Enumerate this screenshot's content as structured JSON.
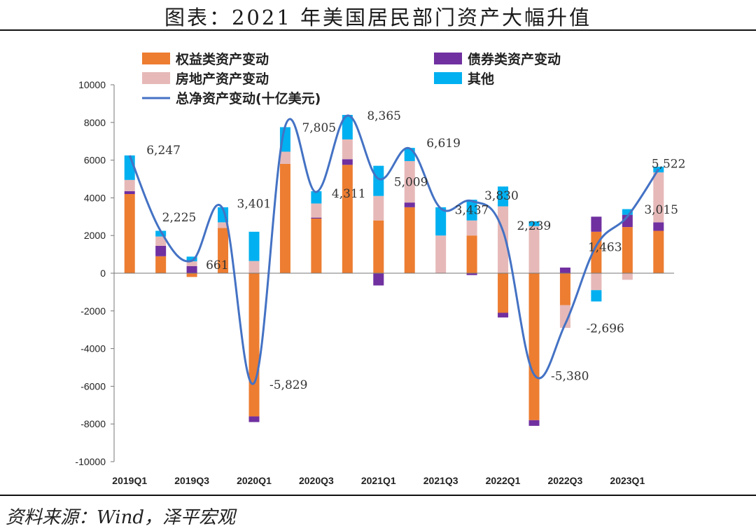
{
  "header": {
    "title": "图表：2021 年美国居民部门资产大幅升值"
  },
  "footer": {
    "source": "资料来源：Wind，泽平宏观"
  },
  "colors": {
    "equity": "#ED7D31",
    "bonds": "#7030A0",
    "real_estate": "#E6B9B8",
    "other": "#00B0F0",
    "line": "#4472C4"
  },
  "chart_data": {
    "type": "bar",
    "stacked": true,
    "title": "",
    "xlabel": "",
    "ylabel": "",
    "ylim": [
      -10000,
      10000
    ],
    "yticks": [
      -10000,
      -8000,
      -6000,
      -4000,
      -2000,
      0,
      2000,
      4000,
      6000,
      8000,
      10000
    ],
    "grid": false,
    "legend_position": "top",
    "categories": [
      "2019Q1",
      "2019Q2",
      "2019Q3",
      "2019Q4",
      "2020Q1",
      "2020Q2",
      "2020Q3",
      "2020Q4",
      "2021Q1",
      "2021Q2",
      "2021Q3",
      "2021Q4",
      "2022Q1",
      "2022Q2",
      "2022Q3",
      "2022Q4",
      "2023Q1",
      "2023Q2"
    ],
    "x_tick_labels": [
      "2019Q1",
      "",
      "2019Q3",
      "",
      "2020Q1",
      "",
      "2020Q3",
      "",
      "2021Q1",
      "",
      "2021Q3",
      "",
      "2022Q1",
      "",
      "2022Q3",
      "",
      "2023Q1",
      ""
    ],
    "series": [
      {
        "name": "权益类资产变动",
        "key": "equity",
        "type": "bar",
        "values": [
          4200,
          900,
          -200,
          2400,
          -7600,
          5800,
          2900,
          5750,
          2800,
          3500,
          0,
          2000,
          -2100,
          -7800,
          -1700,
          2200,
          2450,
          2250
        ]
      },
      {
        "name": "债券类资产变动",
        "key": "bonds",
        "type": "bar",
        "values": [
          150,
          550,
          380,
          0,
          -300,
          0,
          50,
          300,
          -650,
          250,
          0,
          -100,
          -250,
          -300,
          300,
          800,
          650,
          450
        ]
      },
      {
        "name": "房地产资产变动",
        "key": "real_estate",
        "type": "bar",
        "values": [
          600,
          500,
          250,
          300,
          650,
          650,
          750,
          1050,
          1300,
          2200,
          2000,
          800,
          3550,
          2500,
          -1200,
          -900,
          -350,
          2650
        ]
      },
      {
        "name": "其他",
        "key": "other",
        "type": "bar",
        "values": [
          1300,
          300,
          250,
          800,
          1550,
          1300,
          650,
          1300,
          1600,
          700,
          1500,
          1100,
          1050,
          250,
          0,
          -600,
          300,
          300
        ]
      },
      {
        "name": "总净资产变动(十亿美元)",
        "key": "total",
        "type": "line",
        "values": [
          6247,
          2225,
          661,
          3401,
          -5829,
          7805,
          4311,
          8365,
          5009,
          6619,
          3437,
          3830,
          2239,
          -5380,
          -2696,
          1463,
          3015,
          5522
        ]
      }
    ],
    "data_labels": [
      {
        "index": 0,
        "text": "6,247"
      },
      {
        "index": 1,
        "text": "2,225"
      },
      {
        "index": 2,
        "text": "661"
      },
      {
        "index": 3,
        "text": "3,401"
      },
      {
        "index": 4,
        "text": "-5,829"
      },
      {
        "index": 5,
        "text": "7,805"
      },
      {
        "index": 6,
        "text": "4,311"
      },
      {
        "index": 7,
        "text": "8,365"
      },
      {
        "index": 8,
        "text": "5,009"
      },
      {
        "index": 9,
        "text": "6,619"
      },
      {
        "index": 10,
        "text": "3,437"
      },
      {
        "index": 11,
        "text": "3,830"
      },
      {
        "index": 12,
        "text": "2,239"
      },
      {
        "index": 13,
        "text": "-5,380"
      },
      {
        "index": 14,
        "text": "-2,696"
      },
      {
        "index": 15,
        "text": "1,463"
      },
      {
        "index": 16,
        "text": "3,015"
      },
      {
        "index": 17,
        "text": "5,522"
      }
    ]
  }
}
